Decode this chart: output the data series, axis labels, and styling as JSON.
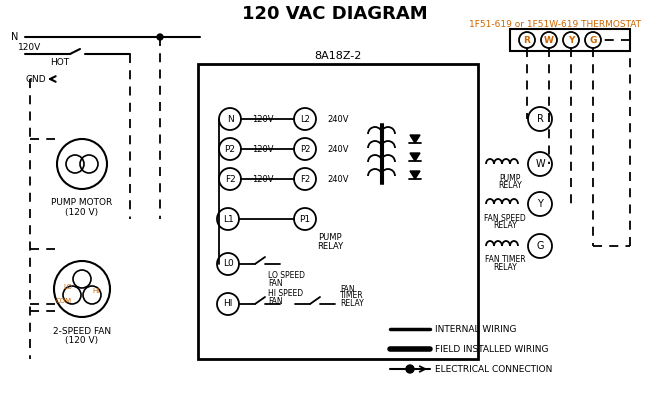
{
  "title": "120 VAC DIAGRAM",
  "title_color": "#000000",
  "background_color": "#ffffff",
  "thermostat_label": "1F51-619 or 1F51W-619 THERMOSTAT",
  "thermostat_color": "#cc6600",
  "control_box_label": "8A18Z-2",
  "terminal_labels": [
    "R",
    "W",
    "Y",
    "G"
  ],
  "terminal_colors": [
    "#cc6600",
    "#cc6600",
    "#cc6600",
    "#cc6600"
  ],
  "relay_labels": [
    "R",
    "W",
    "Y",
    "G"
  ],
  "left_labels": [
    "N",
    "P2",
    "F2",
    "L1",
    "L0",
    "HI"
  ],
  "right_labels": [
    "L2 240V",
    "P2 240V",
    "F2 240V"
  ],
  "pump_motor_text": [
    "PUMP MOTOR",
    "(120 V)"
  ],
  "fan_text": [
    "2-SPEED FAN",
    "(120 V)"
  ],
  "legend_items": [
    "INTERNAL WIRING",
    "FIELD INSTALLED WIRING",
    "ELECTRICAL CONNECTION"
  ],
  "line_color": "#000000",
  "dashed_color": "#000000"
}
